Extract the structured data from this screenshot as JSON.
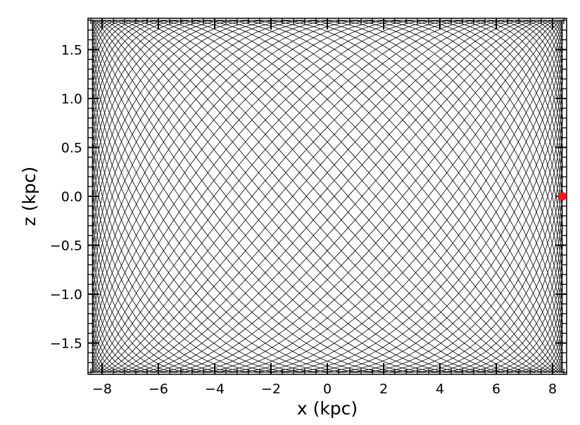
{
  "chart_data": {
    "type": "line",
    "title": "",
    "xlabel": "x (kpc)",
    "ylabel": "z (kpc)",
    "xlim": [
      -8.5,
      8.5
    ],
    "ylim": [
      -1.82,
      1.82
    ],
    "x_ticks": [
      {
        "value": -8,
        "label": "−8"
      },
      {
        "value": -6,
        "label": "−6"
      },
      {
        "value": -4,
        "label": "−4"
      },
      {
        "value": -2,
        "label": "−2"
      },
      {
        "value": 0,
        "label": "0"
      },
      {
        "value": 2,
        "label": "2"
      },
      {
        "value": 4,
        "label": "4"
      },
      {
        "value": 6,
        "label": "6"
      },
      {
        "value": 8,
        "label": "8"
      }
    ],
    "y_ticks": [
      {
        "value": 1.5,
        "label": "1.5"
      },
      {
        "value": 1.0,
        "label": "1.0"
      },
      {
        "value": 0.5,
        "label": "0.5"
      },
      {
        "value": 0.0,
        "label": "0.0"
      },
      {
        "value": -0.5,
        "label": "−0.5"
      },
      {
        "value": -1.0,
        "label": "−1.0"
      },
      {
        "value": -1.5,
        "label": "−1.5"
      }
    ],
    "x_minor_step": 0.4,
    "y_minor_step": 0.1,
    "series": [
      {
        "style": "thin black orbit trajectory",
        "color": "#000000",
        "x_amplitude": 8.35,
        "z_amplitude": 1.8,
        "frequency_ratio": 1.5,
        "phase_drift_cycles": 1.0,
        "loops": 70
      }
    ],
    "marker": {
      "x": 8.35,
      "y": 0.0,
      "color": "#ee1c1c"
    },
    "grid": false,
    "legend": "none"
  }
}
